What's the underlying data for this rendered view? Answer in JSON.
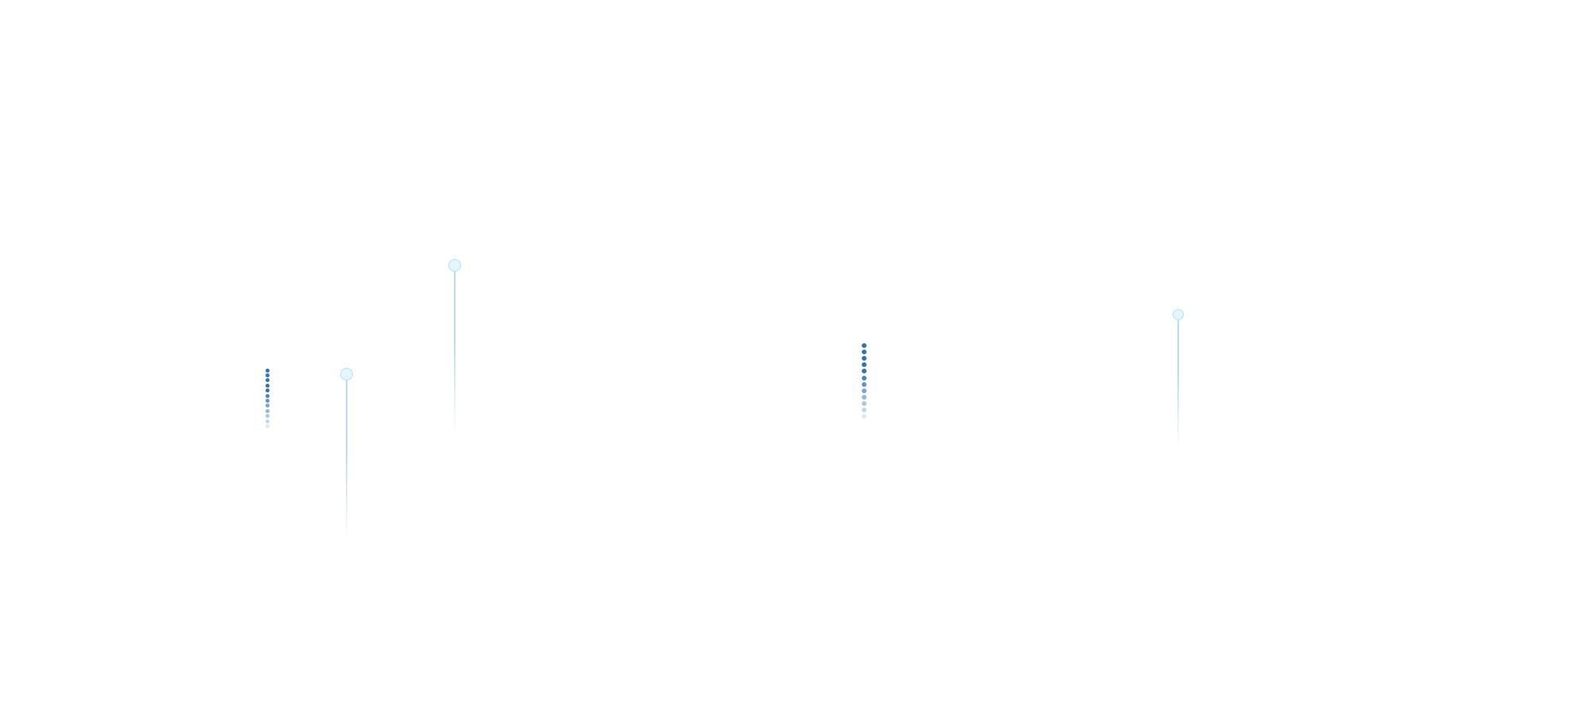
{
  "colors": {
    "dot": "#2f74b5",
    "pin_fill": "#e3f5fd",
    "pin_border": "#b5e0f5",
    "pin_line": "#b8dcf2"
  },
  "loaders": [
    {
      "type": "dot-column",
      "count": 12
    },
    {
      "type": "dot-column",
      "count": 12
    }
  ],
  "pins": [
    {
      "type": "pin"
    },
    {
      "type": "pin"
    },
    {
      "type": "pin"
    }
  ]
}
